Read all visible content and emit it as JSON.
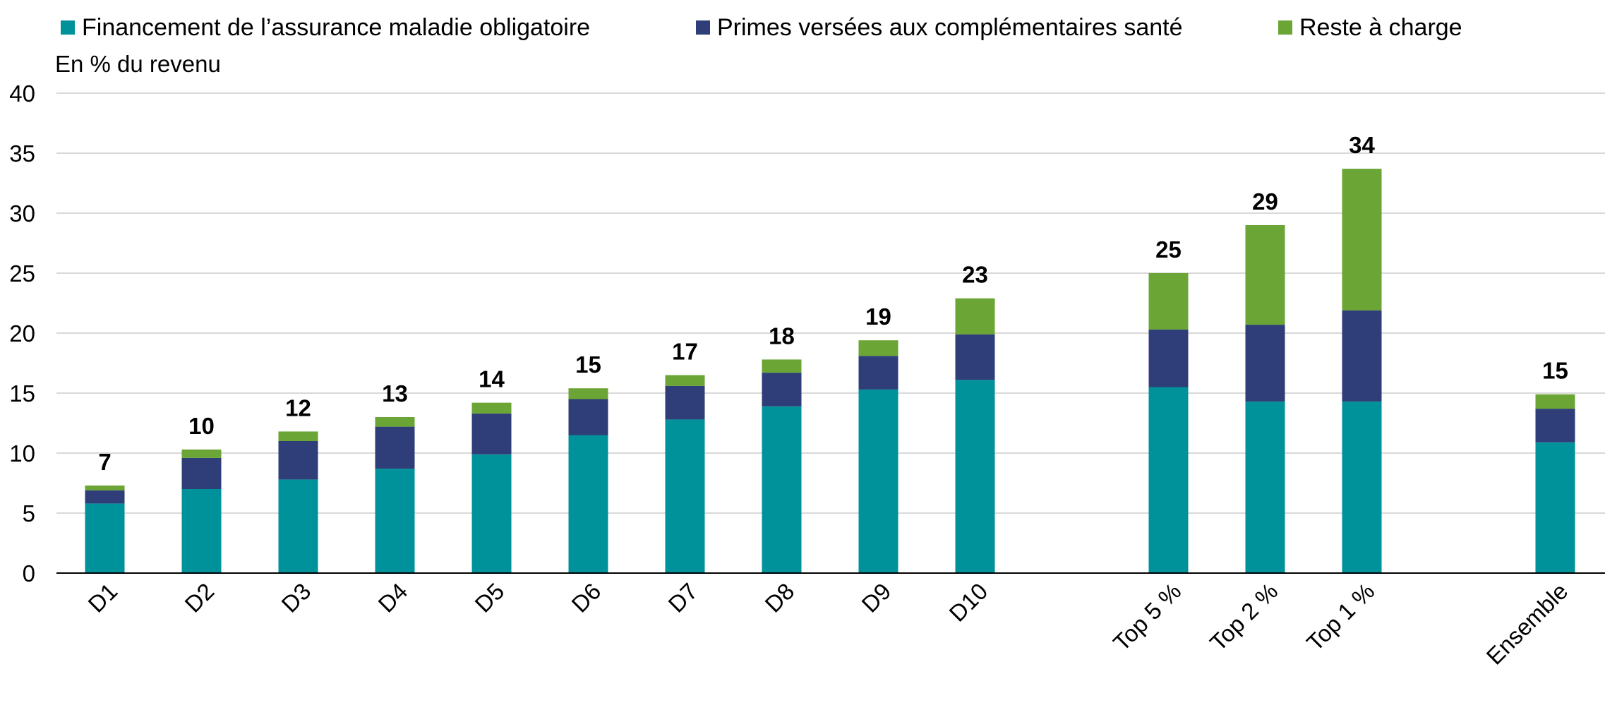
{
  "chart_data": {
    "type": "bar",
    "stacked": true,
    "ylabel": "En % du revenu",
    "ylim": [
      0,
      40
    ],
    "yticks": [
      0,
      5,
      10,
      15,
      20,
      25,
      30,
      35,
      40
    ],
    "grid": true,
    "legend_position": "top",
    "categories": [
      "D1",
      "D2",
      "D3",
      "D4",
      "D5",
      "D6",
      "D7",
      "D8",
      "D9",
      "D10",
      "Top 5 %",
      "Top 2 %",
      "Top 1 %",
      "Ensemble"
    ],
    "series": [
      {
        "name": "Financement de l’assurance maladie obligatoire",
        "color": "#00929a",
        "values": [
          5.8,
          7.0,
          7.8,
          8.7,
          9.9,
          11.5,
          12.8,
          13.9,
          15.3,
          16.1,
          15.5,
          14.3,
          14.3,
          10.9
        ]
      },
      {
        "name": "Primes versées aux complémentaires santé",
        "color": "#2f3d78",
        "values": [
          1.1,
          2.6,
          3.2,
          3.5,
          3.4,
          3.0,
          2.8,
          2.8,
          2.8,
          3.8,
          4.8,
          6.4,
          7.6,
          2.8
        ]
      },
      {
        "name": "Reste à charge",
        "color": "#6aa535",
        "values": [
          0.4,
          0.7,
          0.8,
          0.8,
          0.9,
          0.9,
          0.9,
          1.1,
          1.3,
          3.0,
          4.7,
          8.3,
          11.8,
          1.2
        ]
      }
    ],
    "totals": [
      "7",
      "10",
      "12",
      "13",
      "14",
      "15",
      "17",
      "18",
      "19",
      "23",
      "25",
      "29",
      "34",
      "15"
    ]
  }
}
